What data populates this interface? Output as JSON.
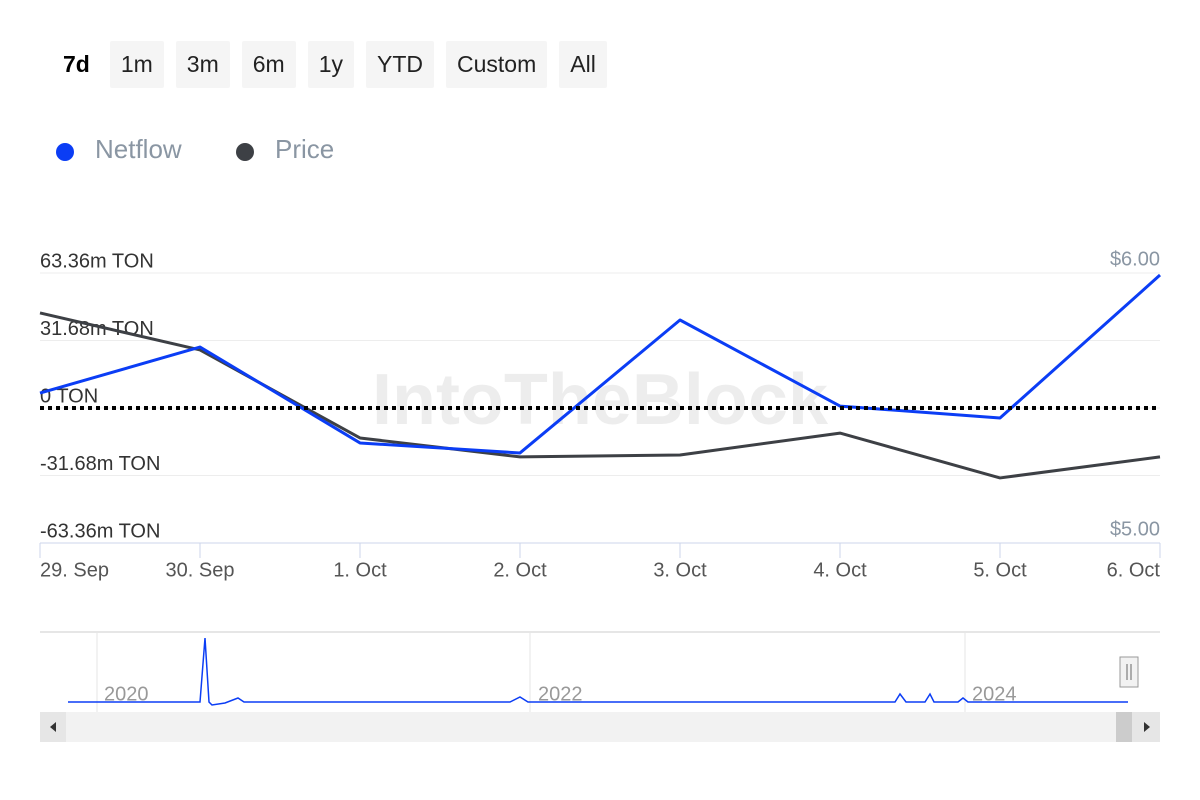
{
  "range_buttons": [
    "7d",
    "1m",
    "3m",
    "6m",
    "1y",
    "YTD",
    "Custom",
    "All"
  ],
  "watermark": "IntoTheBlock",
  "navigator": {
    "labels": [
      "2020",
      "2022",
      "2024"
    ]
  },
  "chart_data": {
    "type": "line",
    "categories": [
      "29. Sep",
      "30. Sep",
      "1. Oct",
      "2. Oct",
      "3. Oct",
      "4. Oct",
      "5. Oct",
      "6. Oct"
    ],
    "series": [
      {
        "name": "Netflow",
        "color": "#0b3df5",
        "values": [
          7.0,
          28.6,
          -16.4,
          -21.1,
          41.3,
          0.9,
          -4.7,
          62.4
        ]
      },
      {
        "name": "Price",
        "color": "#3d4045",
        "axis": "y2",
        "values": [
          5.852,
          5.715,
          5.389,
          5.319,
          5.326,
          5.407,
          5.241,
          5.319
        ]
      }
    ],
    "ylim": [
      -63.36,
      63.36
    ],
    "yticks": [
      {
        "value": -63.36,
        "label": "-63.36m TON"
      },
      {
        "value": -31.68,
        "label": "-31.68m TON"
      },
      {
        "value": 0,
        "label": "0 TON"
      },
      {
        "value": 31.68,
        "label": "31.68m TON"
      },
      {
        "value": 63.36,
        "label": "63.36m TON"
      }
    ],
    "y2lim": [
      5,
      6
    ],
    "y2ticks": [
      {
        "value": 5,
        "label": "$5.00"
      },
      {
        "value": 6,
        "label": "$6.00"
      }
    ],
    "grid": true
  }
}
